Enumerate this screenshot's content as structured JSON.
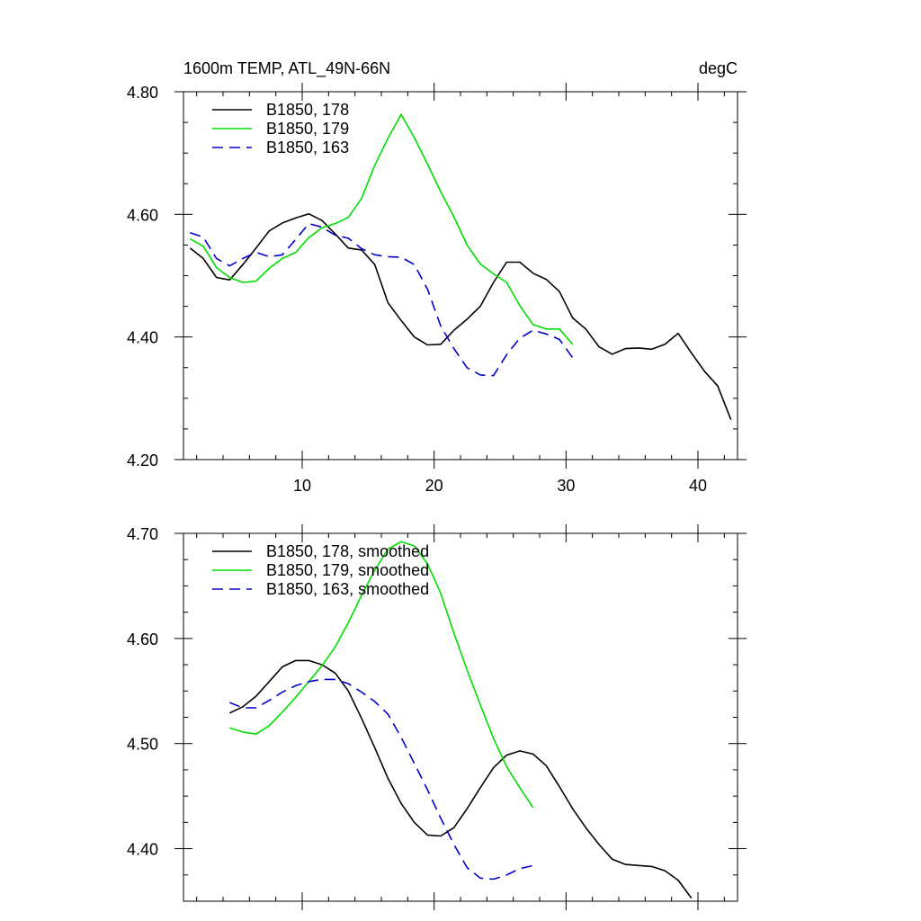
{
  "chart_data": [
    {
      "type": "line",
      "title": "1600m TEMP, ATL_49N-66N",
      "units": "degC",
      "xlabel": "",
      "ylabel": "",
      "xlim": [
        1,
        43
      ],
      "ylim": [
        4.2,
        4.8
      ],
      "x_ticks": [
        10,
        20,
        30,
        40
      ],
      "x_tick_labels": [
        "10",
        "20",
        "30",
        "40"
      ],
      "y_ticks": [
        4.2,
        4.4,
        4.6,
        4.8
      ],
      "y_tick_labels": [
        "4.20",
        "4.40",
        "4.60",
        "4.80"
      ],
      "legend_position": "top-left",
      "series": [
        {
          "name": "B1850, 178",
          "color": "#000000",
          "dash": "solid",
          "x": [
            1.5,
            2.5,
            3.5,
            4.5,
            5.5,
            6.5,
            7.5,
            8.5,
            9.5,
            10.5,
            11.5,
            12.5,
            13.5,
            14.5,
            15.5,
            16.5,
            17.5,
            18.5,
            19.5,
            20.5,
            21.5,
            22.5,
            23.5,
            24.5,
            25.5,
            26.5,
            27.5,
            28.5,
            29.5,
            30.5,
            31.5,
            32.5,
            33.5,
            34.5,
            35.5,
            36.5,
            37.5,
            38.5,
            39.5,
            40.5,
            41.5,
            42.5
          ],
          "values": [
            4.545,
            4.528,
            4.497,
            4.493,
            4.518,
            4.545,
            4.573,
            4.586,
            4.594,
            4.601,
            4.59,
            4.568,
            4.545,
            4.542,
            4.518,
            4.456,
            4.427,
            4.4,
            4.387,
            4.388,
            4.411,
            4.429,
            4.45,
            4.489,
            4.522,
            4.522,
            4.504,
            4.494,
            4.474,
            4.431,
            4.413,
            4.384,
            4.372,
            4.381,
            4.382,
            4.38,
            4.388,
            4.406,
            4.374,
            4.344,
            4.32,
            4.265
          ]
        },
        {
          "name": "B1850, 179",
          "color": "#00dd00",
          "dash": "solid",
          "x": [
            1.5,
            2.5,
            3.5,
            4.5,
            5.5,
            6.5,
            7.5,
            8.5,
            9.5,
            10.5,
            11.5,
            12.5,
            13.5,
            14.5,
            15.5,
            16.5,
            17.5,
            18.5,
            19.5,
            20.5,
            21.5,
            22.5,
            23.5,
            24.5,
            25.5,
            26.5,
            27.5,
            28.5,
            29.5,
            30.5
          ],
          "values": [
            4.56,
            4.548,
            4.513,
            4.497,
            4.489,
            4.491,
            4.512,
            4.528,
            4.538,
            4.562,
            4.578,
            4.585,
            4.595,
            4.626,
            4.68,
            4.724,
            4.763,
            4.725,
            4.682,
            4.637,
            4.596,
            4.55,
            4.519,
            4.503,
            4.489,
            4.451,
            4.42,
            4.413,
            4.413,
            4.388
          ]
        },
        {
          "name": "B1850, 163",
          "color": "#0000cc",
          "dash": "dashed",
          "x": [
            1.5,
            2.5,
            3.5,
            4.5,
            5.5,
            6.5,
            7.5,
            8.5,
            9.5,
            10.5,
            11.5,
            12.5,
            13.5,
            14.5,
            15.5,
            16.5,
            17.5,
            18.5,
            19.5,
            20.5,
            21.5,
            22.5,
            23.5,
            24.5,
            25.5,
            26.5,
            27.5,
            28.5,
            29.5,
            30.5
          ],
          "values": [
            4.57,
            4.563,
            4.528,
            4.516,
            4.528,
            4.538,
            4.531,
            4.534,
            4.559,
            4.585,
            4.579,
            4.566,
            4.561,
            4.544,
            4.534,
            4.531,
            4.53,
            4.518,
            4.478,
            4.418,
            4.381,
            4.35,
            4.338,
            4.337,
            4.371,
            4.398,
            4.411,
            4.405,
            4.396,
            4.366
          ]
        }
      ]
    },
    {
      "type": "line",
      "title": "",
      "xlabel": "",
      "ylabel": "",
      "xlim": [
        1,
        43
      ],
      "ylim": [
        4.35,
        4.7
      ],
      "x_ticks": [
        10,
        20,
        30,
        40
      ],
      "y_ticks": [
        4.4,
        4.5,
        4.6,
        4.7
      ],
      "y_tick_labels": [
        "4.40",
        "4.50",
        "4.60",
        "4.70"
      ],
      "legend_position": "top-left",
      "series": [
        {
          "name": "B1850, 178, smoothed",
          "color": "#000000",
          "dash": "solid",
          "x": [
            4.5,
            5.5,
            6.5,
            7.5,
            8.5,
            9.5,
            10.5,
            11.5,
            12.5,
            13.5,
            14.5,
            15.5,
            16.5,
            17.5,
            18.5,
            19.5,
            20.5,
            21.5,
            22.5,
            23.5,
            24.5,
            25.5,
            26.5,
            27.5,
            28.5,
            29.5,
            30.5,
            31.5,
            32.5,
            33.5,
            34.5,
            35.5,
            36.5,
            37.5,
            38.5,
            39.5
          ],
          "values": [
            4.529,
            4.535,
            4.545,
            4.559,
            4.573,
            4.579,
            4.579,
            4.575,
            4.567,
            4.55,
            4.524,
            4.496,
            4.467,
            4.443,
            4.425,
            4.413,
            4.412,
            4.42,
            4.438,
            4.458,
            4.477,
            4.489,
            4.493,
            4.49,
            4.479,
            4.459,
            4.438,
            4.42,
            4.404,
            4.39,
            4.385,
            4.384,
            4.383,
            4.379,
            4.37,
            4.353
          ]
        },
        {
          "name": "B1850, 179, smoothed",
          "color": "#00dd00",
          "dash": "solid",
          "x": [
            4.5,
            5.5,
            6.5,
            7.5,
            8.5,
            9.5,
            10.5,
            11.5,
            12.5,
            13.5,
            14.5,
            15.5,
            16.5,
            17.5,
            18.5,
            19.5,
            20.5,
            21.5,
            22.5,
            23.5,
            24.5,
            25.5,
            26.5,
            27.5
          ],
          "values": [
            4.515,
            4.511,
            4.509,
            4.517,
            4.53,
            4.544,
            4.559,
            4.574,
            4.592,
            4.615,
            4.641,
            4.665,
            4.685,
            4.692,
            4.688,
            4.671,
            4.643,
            4.605,
            4.57,
            4.537,
            4.505,
            4.478,
            4.458,
            4.439
          ]
        },
        {
          "name": "B1850, 163, smoothed",
          "color": "#0000cc",
          "dash": "dashed",
          "x": [
            4.5,
            5.5,
            6.5,
            7.5,
            8.5,
            9.5,
            10.5,
            11.5,
            12.5,
            13.5,
            14.5,
            15.5,
            16.5,
            17.5,
            18.5,
            19.5,
            20.5,
            21.5,
            22.5,
            23.5,
            24.5,
            25.5,
            26.5,
            27.5
          ],
          "values": [
            4.539,
            4.534,
            4.534,
            4.541,
            4.549,
            4.555,
            4.559,
            4.561,
            4.561,
            4.557,
            4.549,
            4.54,
            4.528,
            4.506,
            4.481,
            4.456,
            4.429,
            4.404,
            4.382,
            4.372,
            4.371,
            4.375,
            4.381,
            4.384
          ]
        }
      ]
    }
  ]
}
